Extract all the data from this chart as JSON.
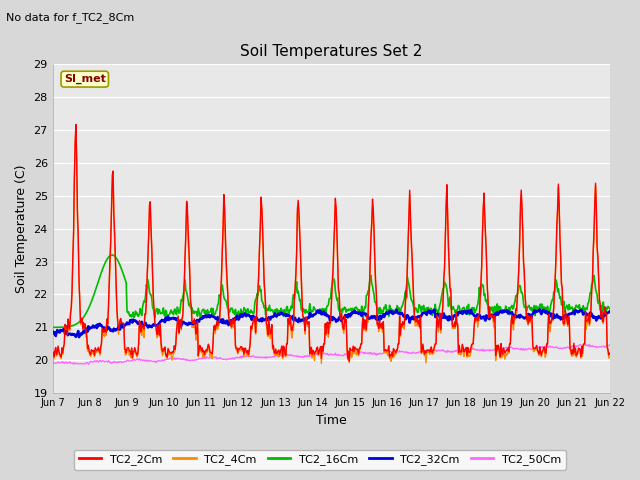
{
  "title": "Soil Temperatures Set 2",
  "top_left_note": "No data for f_TC2_8Cm",
  "xlabel": "Time",
  "ylabel": "Soil Temperature (C)",
  "ylim": [
    19.0,
    29.0
  ],
  "yticks": [
    19.0,
    20.0,
    21.0,
    22.0,
    23.0,
    24.0,
    25.0,
    26.0,
    27.0,
    28.0,
    29.0
  ],
  "xtick_labels": [
    "Jun 7",
    "Jun 8",
    "Jun 9",
    "Jun 10",
    "Jun 11",
    "Jun 12",
    "Jun 13",
    "Jun 14",
    "Jun 15",
    "Jun 16",
    "Jun 17",
    "Jun 18",
    "Jun 19",
    "Jun 20",
    "Jun 21",
    "Jun 22"
  ],
  "background_color": "#d8d8d8",
  "plot_bg_color": "#e8e8e8",
  "legend_label": "SI_met",
  "legend_bg": "#ffffcc",
  "legend_border": "#999900",
  "series_colors": {
    "TC2_2Cm": "#ff0000",
    "TC2_4Cm": "#ff8800",
    "TC2_16Cm": "#00bb00",
    "TC2_32Cm": "#0000dd",
    "TC2_50Cm": "#ff66ff"
  },
  "line_widths": {
    "TC2_2Cm": 1.0,
    "TC2_4Cm": 1.0,
    "TC2_16Cm": 1.2,
    "TC2_32Cm": 1.8,
    "TC2_50Cm": 1.0
  }
}
